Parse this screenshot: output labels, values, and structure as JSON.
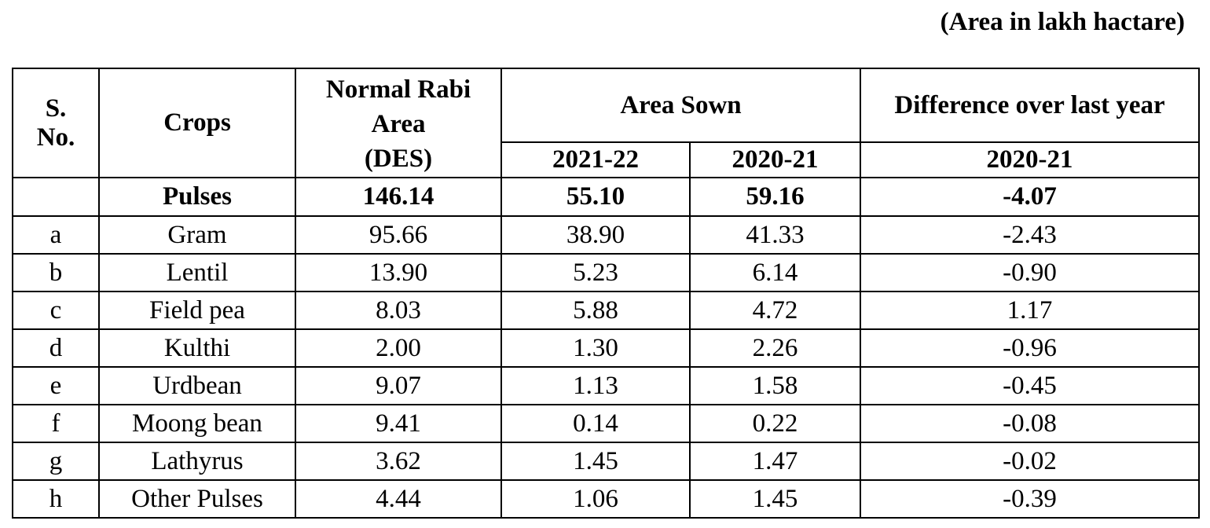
{
  "unit_note": "(Area in lakh hactare)",
  "header": {
    "sno": "S.\nNo.",
    "sno_line1": "S.",
    "sno_line2": "No.",
    "crops": "Crops",
    "normal_line1": "Normal Rabi",
    "normal_line2": "Area",
    "normal_line3": "(DES)",
    "area_sown": "Area Sown",
    "difference": "Difference over last year",
    "year_2021_22": "2021-22",
    "year_2020_21": "2020-21",
    "diff_year": "2020-21"
  },
  "summary": {
    "sno": "",
    "crop": "Pulses",
    "normal": "146.14",
    "sown_2021_22": "55.10",
    "sown_2020_21": "59.16",
    "difference": "-4.07"
  },
  "rows": [
    {
      "sno": "a",
      "crop": "Gram",
      "normal": "95.66",
      "sown_2021_22": "38.90",
      "sown_2020_21": "41.33",
      "difference": "-2.43"
    },
    {
      "sno": "b",
      "crop": "Lentil",
      "normal": "13.90",
      "sown_2021_22": "5.23",
      "sown_2020_21": "6.14",
      "difference": "-0.90"
    },
    {
      "sno": "c",
      "crop": "Field pea",
      "normal": "8.03",
      "sown_2021_22": "5.88",
      "sown_2020_21": "4.72",
      "difference": "1.17"
    },
    {
      "sno": "d",
      "crop": "Kulthi",
      "normal": "2.00",
      "sown_2021_22": "1.30",
      "sown_2020_21": "2.26",
      "difference": "-0.96"
    },
    {
      "sno": "e",
      "crop": "Urdbean",
      "normal": "9.07",
      "sown_2021_22": "1.13",
      "sown_2020_21": "1.58",
      "difference": "-0.45"
    },
    {
      "sno": "f",
      "crop": "Moong bean",
      "normal": "9.41",
      "sown_2021_22": "0.14",
      "sown_2020_21": "0.22",
      "difference": "-0.08"
    },
    {
      "sno": "g",
      "crop": "Lathyrus",
      "normal": "3.62",
      "sown_2021_22": "1.45",
      "sown_2020_21": "1.47",
      "difference": "-0.02"
    },
    {
      "sno": "h",
      "crop": "Other Pulses",
      "normal": "4.44",
      "sown_2021_22": "1.06",
      "sown_2020_21": "1.45",
      "difference": "-0.39"
    }
  ]
}
